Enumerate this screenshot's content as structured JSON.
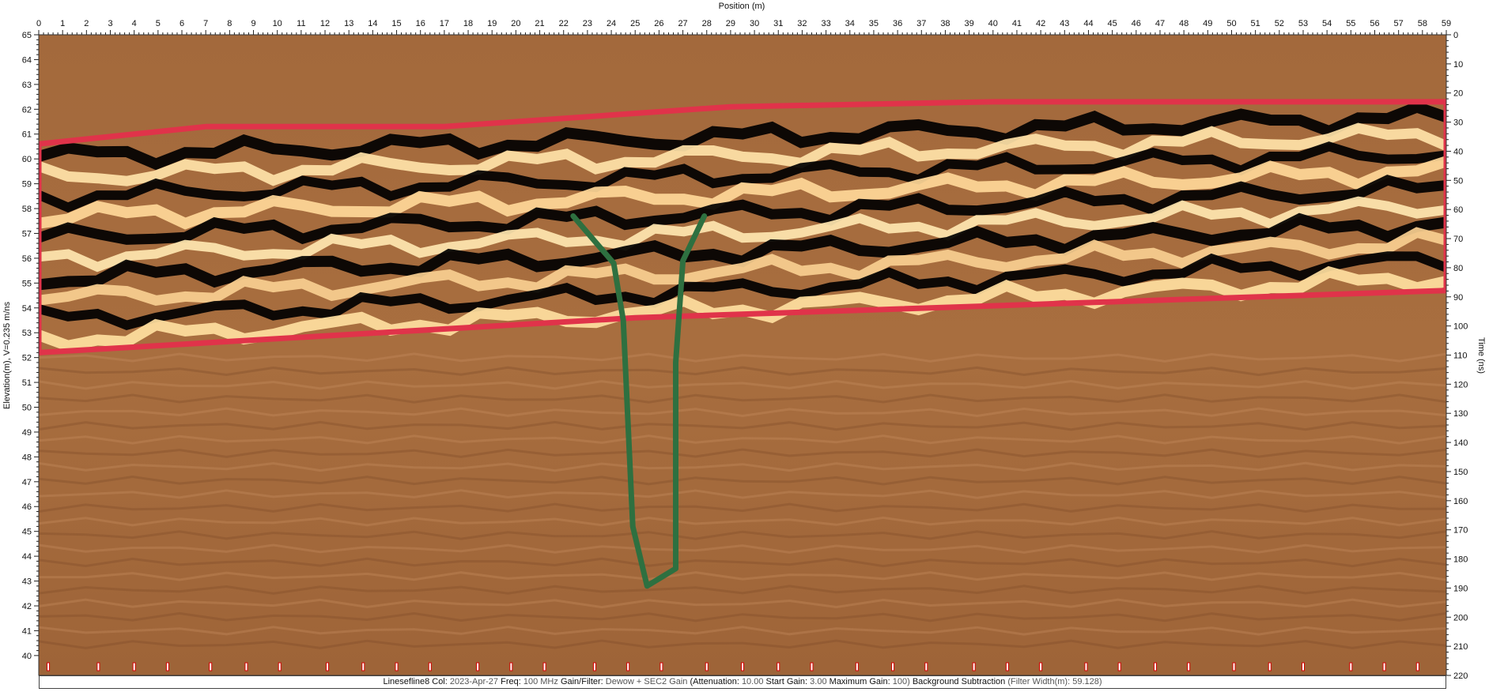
{
  "chart_data": {
    "type": "heatmap",
    "title": "Position (m)",
    "xlabel": "Position (m)",
    "ylabel_left": "Elevation(m), V=0.235 m/ns",
    "ylabel_right": "Time (ns)",
    "x_range": [
      0,
      59
    ],
    "x_ticks": [
      0,
      1,
      2,
      3,
      4,
      5,
      6,
      7,
      8,
      9,
      10,
      11,
      12,
      13,
      14,
      15,
      16,
      17,
      18,
      19,
      20,
      21,
      22,
      23,
      24,
      25,
      26,
      27,
      28,
      29,
      30,
      31,
      32,
      33,
      34,
      35,
      36,
      37,
      38,
      39,
      40,
      41,
      42,
      43,
      44,
      45,
      46,
      47,
      48,
      49,
      50,
      51,
      52,
      53,
      54,
      55,
      56,
      57,
      58,
      59
    ],
    "elevation_range": [
      39.2,
      65
    ],
    "elevation_ticks": [
      40,
      41,
      42,
      43,
      44,
      45,
      46,
      47,
      48,
      49,
      50,
      51,
      52,
      53,
      54,
      55,
      56,
      57,
      58,
      59,
      60,
      61,
      62,
      63,
      64,
      65
    ],
    "time_range": [
      0,
      220
    ],
    "time_ticks": [
      0,
      10,
      20,
      30,
      40,
      50,
      60,
      70,
      80,
      90,
      100,
      110,
      120,
      130,
      140,
      150,
      160,
      170,
      180,
      190,
      200,
      210,
      220
    ],
    "annotations": [
      {
        "name": "reflector-zone",
        "shape": "polygon",
        "color": "#e0334a",
        "points_position_elevation": [
          [
            0,
            60.6
          ],
          [
            7,
            61.3
          ],
          [
            17,
            61.3
          ],
          [
            29,
            62.1
          ],
          [
            40,
            62.3
          ],
          [
            59,
            62.3
          ],
          [
            59,
            54.7
          ],
          [
            25,
            53.6
          ],
          [
            0,
            52.2
          ]
        ]
      },
      {
        "name": "vertical-anomaly",
        "shape": "polyline",
        "color": "#2e7040",
        "points_position_elevation": [
          [
            22.4,
            57.7
          ],
          [
            24.1,
            55.8
          ],
          [
            24.5,
            53.5
          ],
          [
            24.9,
            45.2
          ],
          [
            25.5,
            42.8
          ],
          [
            26.7,
            43.5
          ],
          [
            26.7,
            51.8
          ],
          [
            27.0,
            55.9
          ],
          [
            27.9,
            57.7
          ]
        ]
      }
    ],
    "colormap": [
      "#000000",
      "#a86a3c",
      "#fff0b8"
    ]
  },
  "footer": {
    "line_label": "Linesefline8",
    "col_key": "Col:",
    "col_value": "2023-Apr-27",
    "freq_key": "Freq:",
    "freq_value": "100 MHz",
    "gain_key": "Gain/Filter:",
    "gain_value": "Dewow + SEC2 Gain",
    "atten_key": "(Attenuation:",
    "atten_value": "10.00",
    "start_key": "Start Gain:",
    "start_value": "3.00",
    "max_key": "Maximum Gain:",
    "max_value": "100)",
    "bg_key": "Background Subtraction",
    "bg_value": "(Filter Width(m): 59.128)"
  }
}
